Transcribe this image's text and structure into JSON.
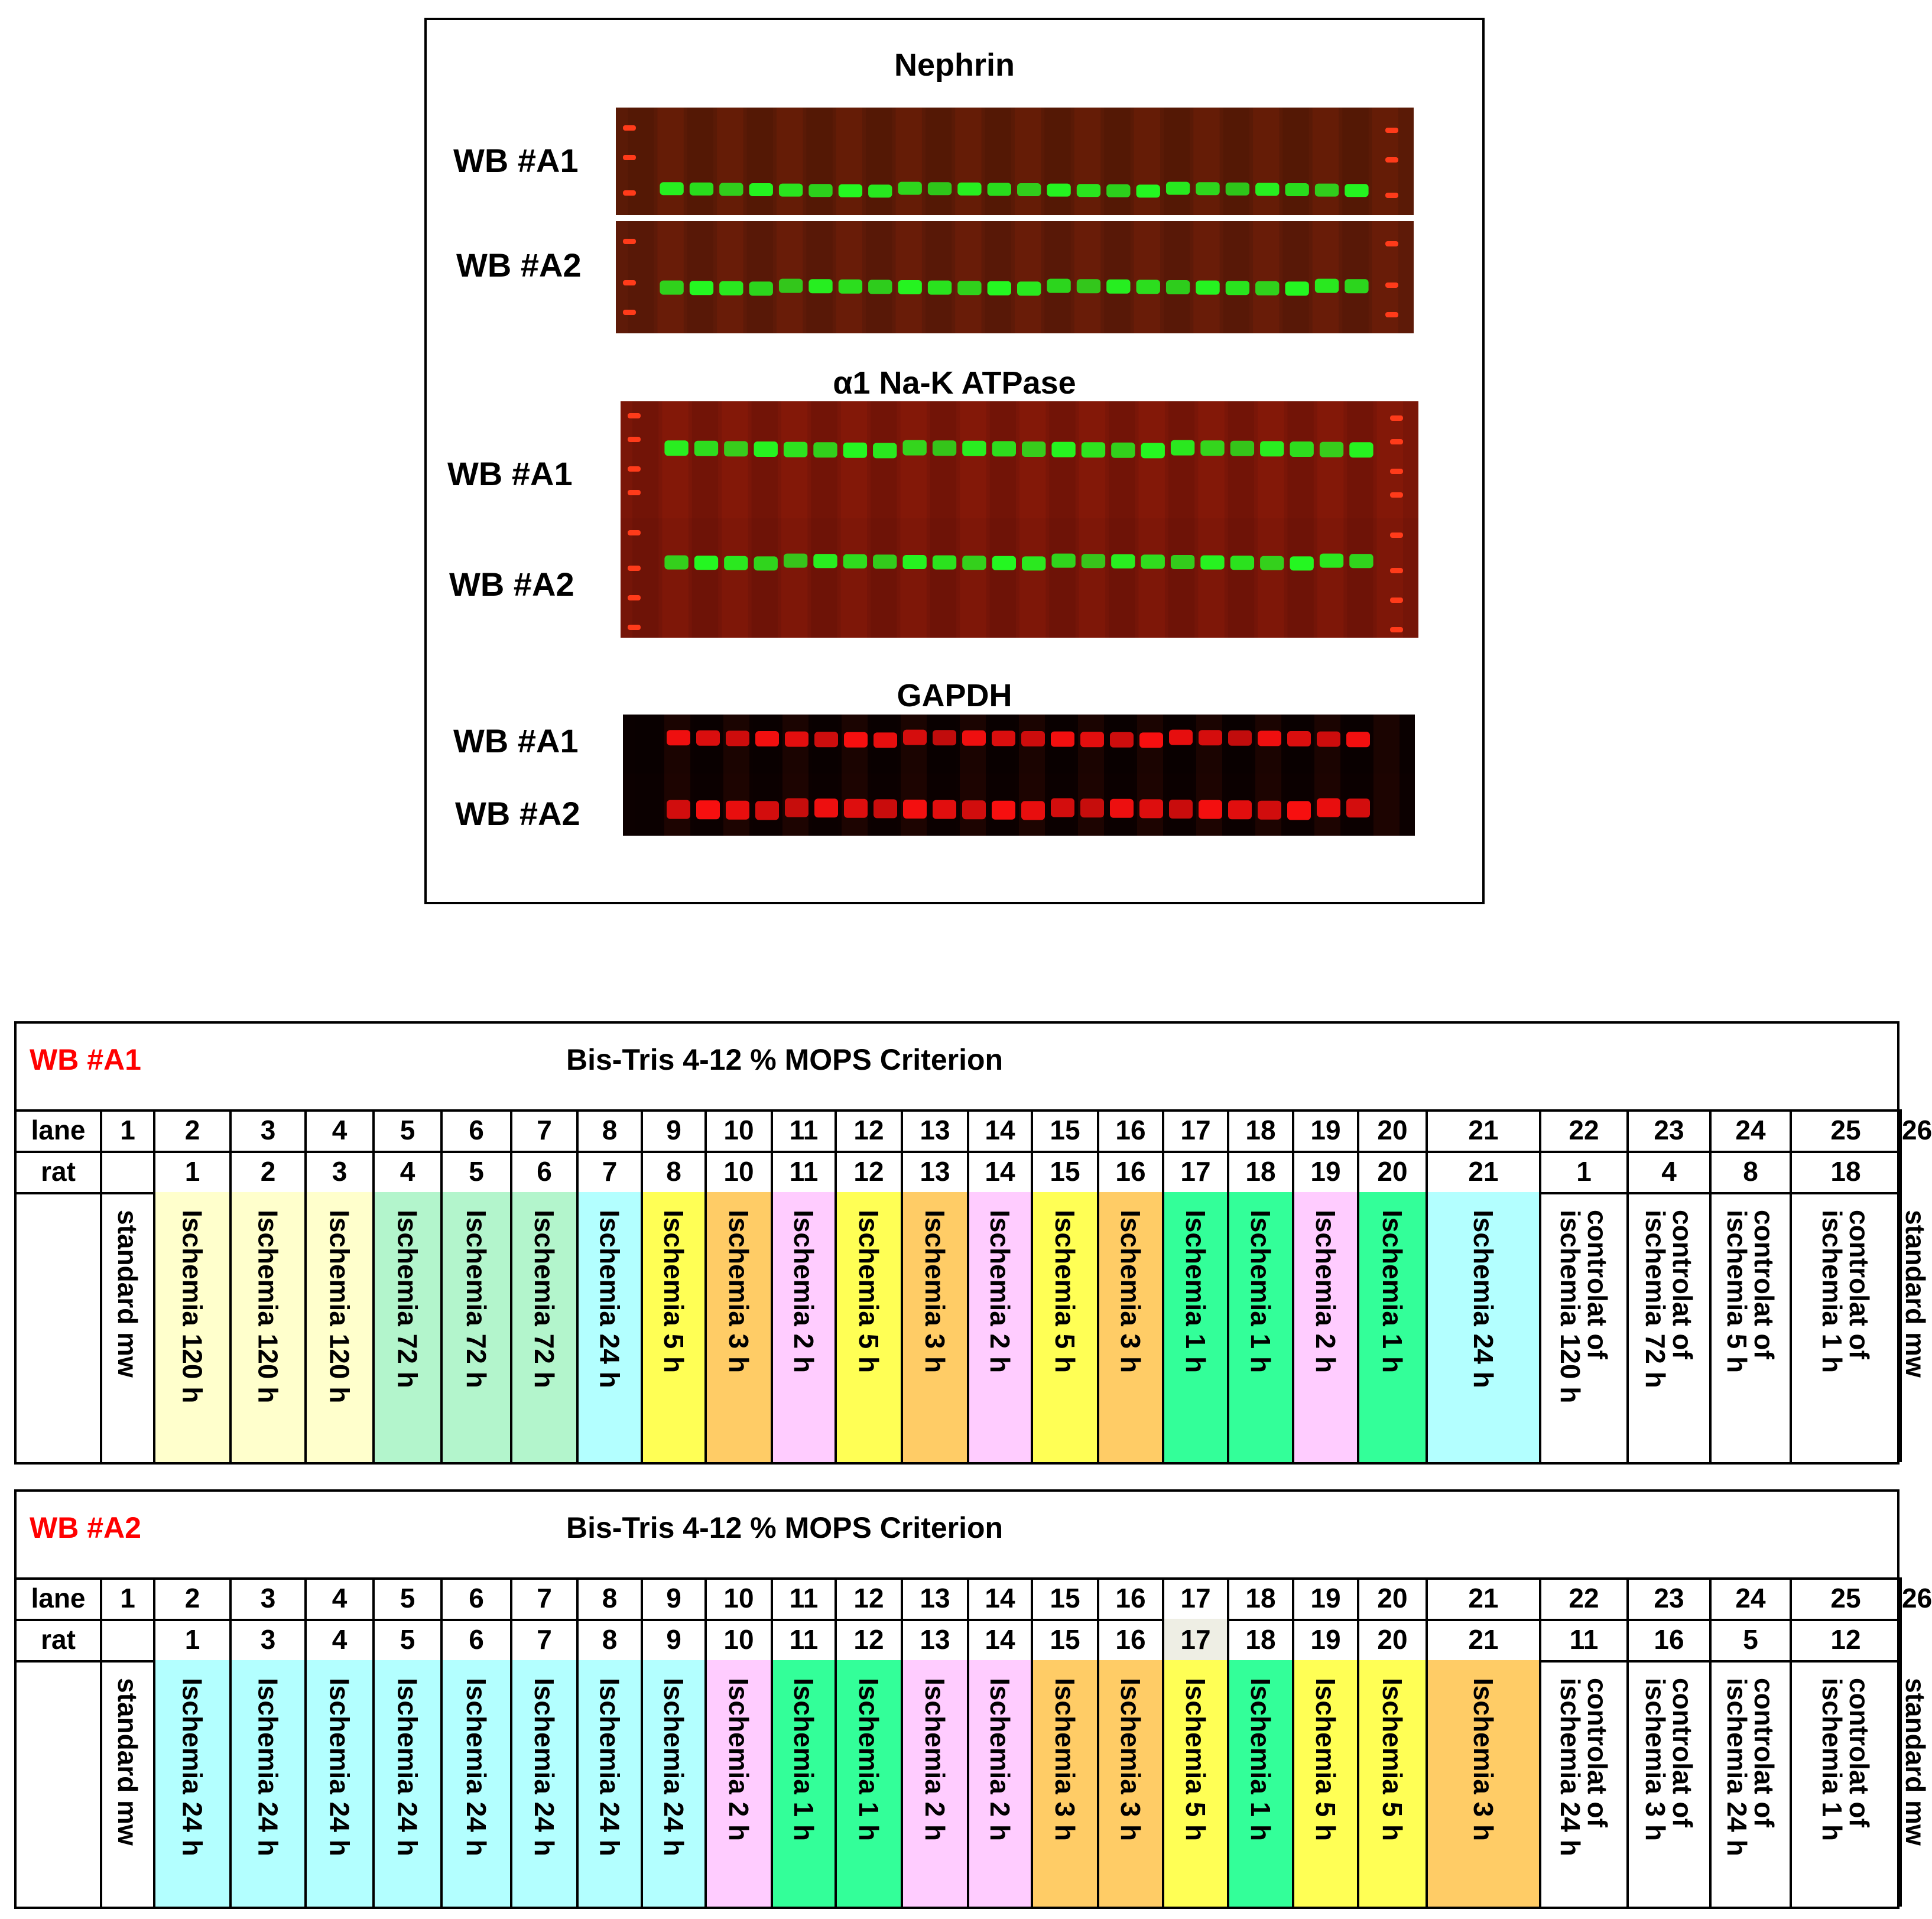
{
  "blots": {
    "nephrin": {
      "title": "Nephrin",
      "rows": [
        "WB #A1",
        "WB #A2"
      ]
    },
    "atpase": {
      "title": "α1 Na-K ATPase",
      "rows": [
        "WB #A1",
        "WB #A2"
      ]
    },
    "gapdh": {
      "title": "GAPDH",
      "rows": [
        "WB #A1",
        "WB #A2"
      ]
    }
  },
  "colors": {
    "ischemia_120h": "#ffffcc",
    "ischemia_72h": "#b3f5cc",
    "ischemia_24h": "#b3ffff",
    "ischemia_5h": "#ffff55",
    "ischemia_3h": "#ffcc66",
    "ischemia_2h": "#ffccff",
    "ischemia_1h": "#33ff99",
    "rat17_highlight": "#eeeee4",
    "wb_label": "#ff0000",
    "band_green": "#22ff22",
    "band_red": "#ff1010",
    "blot_bg": "#7a1608"
  },
  "tables": [
    {
      "wb": "WB #A1",
      "gel": "Bis-Tris 4-12 % MOPS Criterion",
      "lane_label": "lane",
      "rat_label": "rat",
      "lanes": [
        "1",
        "2",
        "3",
        "4",
        "5",
        "6",
        "7",
        "8",
        "9",
        "10",
        "11",
        "12",
        "13",
        "14",
        "15",
        "16",
        "17",
        "18",
        "19",
        "20",
        "21",
        "22",
        "23",
        "24",
        "25",
        "26"
      ],
      "rats": [
        "",
        "1",
        "2",
        "3",
        "4",
        "5",
        "6",
        "7",
        "8",
        "10",
        "11",
        "12",
        "13",
        "14",
        "15",
        "16",
        "17",
        "18",
        "19",
        "20",
        "21",
        "1",
        "4",
        "8",
        "18",
        ""
      ],
      "conditions": [
        "standard mw",
        "Ischemia 120 h",
        "Ischemia 120 h",
        "Ischemia 120 h",
        "Ischemia 72 h",
        "Ischemia 72 h",
        "Ischemia 72 h",
        "Ischemia 24 h",
        "Ischemia 5 h",
        "Ischemia 3 h",
        "Ischemia 2 h",
        "Ischemia 5 h",
        "Ischemia 3 h",
        "Ischemia 2 h",
        "Ischemia 5 h",
        "Ischemia 3 h",
        "Ischemia 1 h",
        "Ischemia 1 h",
        "Ischemia 2 h",
        "Ischemia 1 h",
        "Ischemia 24 h",
        "controlat of\nischemia 120 h",
        "controlat of\nischemia 72 h",
        "controlat of\nischemia 5 h",
        "controlat of\nischemia 1 h",
        "standard mw"
      ],
      "color_keys": [
        "",
        "ischemia_120h",
        "ischemia_120h",
        "ischemia_120h",
        "ischemia_72h",
        "ischemia_72h",
        "ischemia_72h",
        "ischemia_24h",
        "ischemia_5h",
        "ischemia_3h",
        "ischemia_2h",
        "ischemia_5h",
        "ischemia_3h",
        "ischemia_2h",
        "ischemia_5h",
        "ischemia_3h",
        "ischemia_1h",
        "ischemia_1h",
        "ischemia_2h",
        "ischemia_1h",
        "ischemia_24h",
        "",
        "",
        "",
        "",
        ""
      ],
      "rat_color_keys": [
        "",
        "",
        "",
        "",
        "",
        "",
        "",
        "",
        "",
        "",
        "",
        "",
        "",
        "",
        "",
        "",
        "",
        "",
        "",
        "",
        "",
        "",
        "",
        "",
        "",
        ""
      ]
    },
    {
      "wb": "WB #A2",
      "gel": "Bis-Tris 4-12 % MOPS Criterion",
      "lane_label": "lane",
      "rat_label": "rat",
      "lanes": [
        "1",
        "2",
        "3",
        "4",
        "5",
        "6",
        "7",
        "8",
        "9",
        "10",
        "11",
        "12",
        "13",
        "14",
        "15",
        "16",
        "17",
        "18",
        "19",
        "20",
        "21",
        "22",
        "23",
        "24",
        "25",
        "26"
      ],
      "rats": [
        "",
        "1",
        "3",
        "4",
        "5",
        "6",
        "7",
        "8",
        "9",
        "10",
        "11",
        "12",
        "13",
        "14",
        "15",
        "16",
        "17",
        "18",
        "19",
        "20",
        "21",
        "11",
        "16",
        "5",
        "12",
        ""
      ],
      "conditions": [
        "standard mw",
        "Ischemia 24 h",
        "Ischemia 24 h",
        "Ischemia 24 h",
        "Ischemia 24 h",
        "Ischemia 24 h",
        "Ischemia 24 h",
        "Ischemia 24 h",
        "Ischemia 24 h",
        "Ischemia 2 h",
        "Ischemia 1 h",
        "Ischemia 1 h",
        "Ischemia 2 h",
        "Ischemia 2 h",
        "Ischemia 3 h",
        "Ischemia 3 h",
        "Ischemia 5 h",
        "Ischemia 1 h",
        "Ischemia 5 h",
        "Ischemia 5 h",
        "Ischemia 3 h",
        "controlat of\nischemia 24 h",
        "controlat of\nischemia 3 h",
        "controlat of\nischemia 24 h",
        "controlat of\nischemia 1 h",
        "standard mw"
      ],
      "color_keys": [
        "",
        "ischemia_24h",
        "ischemia_24h",
        "ischemia_24h",
        "ischemia_24h",
        "ischemia_24h",
        "ischemia_24h",
        "ischemia_24h",
        "ischemia_24h",
        "ischemia_2h",
        "ischemia_1h",
        "ischemia_1h",
        "ischemia_2h",
        "ischemia_2h",
        "ischemia_3h",
        "ischemia_3h",
        "ischemia_5h",
        "ischemia_1h",
        "ischemia_5h",
        "ischemia_5h",
        "ischemia_3h",
        "",
        "",
        "",
        "",
        ""
      ],
      "rat_color_keys": [
        "",
        "",
        "",
        "",
        "",
        "",
        "",
        "",
        "",
        "",
        "",
        "",
        "",
        "",
        "",
        "",
        "rat17_highlight",
        "",
        "",
        "",
        "",
        "",
        "",
        "",
        "",
        ""
      ]
    }
  ]
}
